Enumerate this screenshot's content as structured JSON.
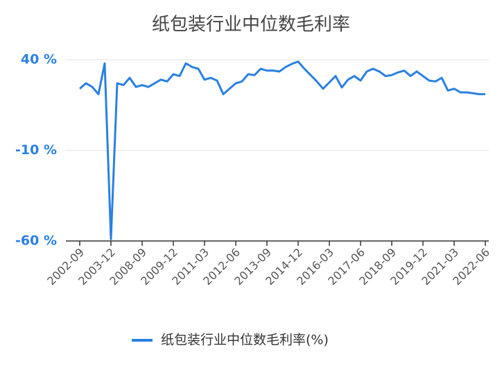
{
  "chart_data": {
    "type": "line",
    "title": "纸包装行业中位数毛利率",
    "categories": [
      "2002-09",
      null,
      null,
      null,
      null,
      "2003-12",
      null,
      null,
      null,
      null,
      "2008-09",
      null,
      null,
      null,
      null,
      "2009-12",
      null,
      null,
      null,
      null,
      "2011-03",
      null,
      null,
      null,
      null,
      "2012-06",
      null,
      null,
      null,
      null,
      "2013-09",
      null,
      null,
      null,
      null,
      "2014-12",
      null,
      null,
      null,
      null,
      "2016-03",
      null,
      null,
      null,
      null,
      "2017-06",
      null,
      null,
      null,
      null,
      "2018-09",
      null,
      null,
      null,
      null,
      "2019-12",
      null,
      null,
      null,
      null,
      "2021-03",
      null,
      null,
      null,
      null,
      "2022-06"
    ],
    "series": [
      {
        "name": "纸包装行业中位数毛利率(%)",
        "color": "#2a80e2",
        "values": [
          24,
          27,
          25,
          21,
          38,
          -59,
          27,
          26,
          30,
          25,
          26,
          25,
          27,
          29,
          28,
          32,
          31,
          38,
          36,
          35,
          29,
          30,
          28.5,
          21,
          24,
          27,
          28,
          32,
          31.5,
          35,
          34,
          34,
          33.5,
          36,
          37.7,
          39,
          35,
          31.5,
          28,
          24,
          27.5,
          31,
          24.7,
          29,
          31,
          28.5,
          33.5,
          35,
          33.5,
          31,
          31.5,
          33,
          34,
          31,
          33.5,
          31,
          28.5,
          28,
          30,
          23,
          24,
          22,
          22,
          21.5,
          21,
          21
        ]
      }
    ],
    "ylim": [
      -60,
      40
    ],
    "yticks": [
      {
        "value": -60,
        "label": "-60 %"
      },
      {
        "value": -10,
        "label": "-10 %"
      },
      {
        "value": 40,
        "label": "40 %"
      }
    ],
    "grid": true
  }
}
